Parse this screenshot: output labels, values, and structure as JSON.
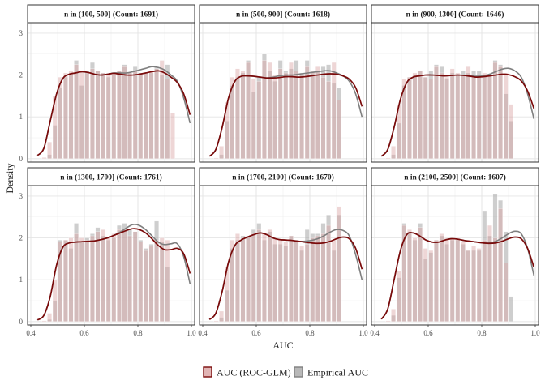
{
  "chart_data": {
    "type": "histogram-density-facets",
    "xlabel": "AUC",
    "ylabel": "Density",
    "xlim": [
      0.4,
      1.0
    ],
    "ylim": [
      0,
      3.2
    ],
    "xticks": [
      0.4,
      0.6,
      0.8,
      1.0
    ],
    "xtick_labels": [
      "0.4",
      "0.6",
      "0.8",
      "1.0"
    ],
    "yticks": [
      0,
      1,
      2,
      3
    ],
    "ytick_labels": [
      "0",
      "1",
      "2",
      "3"
    ],
    "grid": true,
    "legend_position": "bottom",
    "bin_width": 0.02,
    "bin_start": 0.42,
    "series": [
      {
        "name": "AUC (ROC-GLM)",
        "fill": "#d9a3a3",
        "line": "#7a0a0a"
      },
      {
        "name": "Empirical AUC",
        "fill": "#a6a6a6",
        "line": "#7f7f7f"
      }
    ],
    "panels": [
      {
        "strip": "n in (100, 500] (Count: 1691)",
        "rocglm_hist": [
          0.0,
          0.03,
          0.4,
          1.5,
          1.95,
          2.05,
          2.1,
          2.25,
          2.1,
          2.05,
          2.15,
          2.1,
          2.05,
          2.0,
          2.0,
          2.1,
          2.2,
          2.05,
          2.1,
          2.0,
          2.05,
          2.1,
          2.15,
          2.35,
          1.9,
          1.1,
          0.0,
          0.0,
          0.0,
          0.0
        ],
        "empirical_hist": [
          0.0,
          0.0,
          0.1,
          0.8,
          1.7,
          1.95,
          2.05,
          2.35,
          1.75,
          2.1,
          2.3,
          2.1,
          2.05,
          1.95,
          2.0,
          2.1,
          2.25,
          2.05,
          2.2,
          2.05,
          2.05,
          2.05,
          2.2,
          2.0,
          2.25,
          0.0,
          0.0,
          0.0,
          0.0,
          0.0
        ],
        "rocglm_density": [
          0.08,
          0.25,
          0.9,
          1.55,
          1.92,
          2.02,
          2.05,
          2.08,
          2.06,
          2.02,
          2.0,
          2.02,
          2.04,
          2.02,
          2.0,
          2.0,
          2.02,
          2.05,
          2.08,
          2.1,
          2.05,
          1.95,
          1.82,
          1.55,
          1.05
        ],
        "empirical_density": [
          0.08,
          0.25,
          0.9,
          1.55,
          1.92,
          2.02,
          2.05,
          2.08,
          2.06,
          2.02,
          2.0,
          2.02,
          2.05,
          2.05,
          2.05,
          2.08,
          2.12,
          2.16,
          2.2,
          2.18,
          2.12,
          2.0,
          1.85,
          1.45,
          0.85
        ]
      },
      {
        "strip": "n in (500, 900] (Count: 1618)",
        "rocglm_hist": [
          0.0,
          0.02,
          0.3,
          1.35,
          1.95,
          2.15,
          2.1,
          2.3,
          1.9,
          1.85,
          2.35,
          2.3,
          2.0,
          2.15,
          2.05,
          2.3,
          2.1,
          2.0,
          2.2,
          2.1,
          2.2,
          1.95,
          1.85,
          2.3,
          1.4,
          0.0,
          0.0,
          0.0,
          0.0,
          0.0
        ],
        "empirical_hist": [
          0.0,
          0.0,
          0.1,
          0.9,
          1.75,
          1.95,
          2.05,
          2.35,
          1.6,
          1.95,
          2.5,
          2.1,
          1.85,
          2.35,
          2.1,
          2.15,
          2.35,
          2.05,
          2.35,
          2.05,
          2.1,
          2.2,
          2.25,
          1.8,
          1.7,
          0.0,
          0.0,
          0.0,
          0.0,
          0.0
        ],
        "rocglm_density": [
          0.06,
          0.22,
          0.75,
          1.45,
          1.85,
          1.97,
          1.98,
          1.97,
          1.95,
          1.93,
          1.93,
          1.94,
          1.96,
          1.96,
          1.95,
          1.96,
          1.98,
          2.0,
          2.02,
          2.03,
          2.02,
          1.98,
          1.9,
          1.7,
          1.25
        ],
        "empirical_density": [
          0.06,
          0.22,
          0.75,
          1.45,
          1.85,
          1.97,
          1.98,
          1.97,
          1.95,
          1.93,
          1.95,
          1.98,
          2.0,
          2.0,
          2.02,
          2.04,
          2.06,
          2.08,
          2.1,
          2.1,
          2.05,
          1.98,
          1.85,
          1.55,
          1.0
        ]
      },
      {
        "strip": "n in (900, 1300] (Count: 1646)",
        "rocglm_hist": [
          0.0,
          0.02,
          0.3,
          1.3,
          1.9,
          1.95,
          2.05,
          2.1,
          1.95,
          1.9,
          2.2,
          2.05,
          1.95,
          2.15,
          2.05,
          2.0,
          2.2,
          1.95,
          2.0,
          2.05,
          2.0,
          2.3,
          2.2,
          2.05,
          1.3,
          0.0,
          0.0,
          0.0,
          0.0,
          0.0
        ],
        "empirical_hist": [
          0.0,
          0.0,
          0.1,
          0.85,
          1.75,
          1.95,
          2.0,
          2.1,
          1.95,
          2.1,
          2.25,
          2.2,
          1.9,
          2.05,
          2.0,
          2.1,
          2.05,
          2.1,
          2.1,
          2.0,
          2.0,
          2.35,
          2.25,
          1.55,
          0.9,
          0.0,
          0.0,
          0.0,
          0.0,
          0.0
        ],
        "rocglm_density": [
          0.06,
          0.22,
          0.75,
          1.42,
          1.82,
          1.95,
          1.98,
          2.0,
          2.0,
          1.99,
          1.98,
          1.99,
          2.0,
          1.99,
          1.97,
          1.95,
          1.96,
          1.98,
          2.0,
          2.02,
          2.01,
          1.96,
          1.86,
          1.62,
          1.2
        ],
        "empirical_density": [
          0.06,
          0.22,
          0.75,
          1.42,
          1.82,
          1.95,
          1.98,
          2.0,
          2.0,
          1.99,
          1.98,
          1.99,
          2.0,
          1.99,
          1.98,
          1.97,
          1.98,
          2.02,
          2.08,
          2.14,
          2.16,
          2.1,
          1.95,
          1.55,
          0.95
        ]
      },
      {
        "strip": "n in (1300, 1700] (Count: 1761)",
        "rocglm_hist": [
          0.0,
          0.02,
          0.2,
          1.0,
          1.9,
          1.95,
          2.0,
          2.1,
          2.0,
          1.95,
          2.05,
          2.15,
          2.2,
          2.0,
          2.1,
          2.2,
          2.2,
          2.05,
          2.15,
          1.9,
          1.7,
          1.8,
          1.95,
          2.0,
          1.95,
          0.0,
          0.0,
          0.0,
          0.0,
          0.0
        ],
        "empirical_hist": [
          0.0,
          0.0,
          0.05,
          0.5,
          1.95,
          1.95,
          1.75,
          2.35,
          1.9,
          2.0,
          2.1,
          2.25,
          2.05,
          1.95,
          2.0,
          2.3,
          2.35,
          2.2,
          2.15,
          1.95,
          1.75,
          1.85,
          2.4,
          1.9,
          1.3,
          0.0,
          0.0,
          0.0,
          0.0,
          0.0
        ],
        "rocglm_density": [
          0.04,
          0.15,
          0.6,
          1.35,
          1.78,
          1.88,
          1.9,
          1.91,
          1.92,
          1.93,
          1.96,
          2.0,
          2.06,
          2.12,
          2.18,
          2.22,
          2.2,
          2.12,
          1.98,
          1.82,
          1.72,
          1.72,
          1.75,
          1.62,
          1.15
        ],
        "empirical_density": [
          0.04,
          0.15,
          0.6,
          1.35,
          1.78,
          1.88,
          1.9,
          1.91,
          1.92,
          1.93,
          1.96,
          2.0,
          2.06,
          2.14,
          2.24,
          2.32,
          2.3,
          2.2,
          2.05,
          1.9,
          1.84,
          1.86,
          1.86,
          1.55,
          0.9
        ]
      },
      {
        "strip": "n in (1700, 2100] (Count: 1670)",
        "rocglm_hist": [
          0.0,
          0.02,
          0.25,
          1.3,
          1.95,
          2.1,
          2.0,
          2.05,
          2.1,
          2.2,
          2.1,
          2.2,
          2.0,
          1.95,
          1.9,
          2.05,
          1.95,
          1.8,
          1.85,
          2.0,
          2.05,
          2.1,
          2.3,
          1.95,
          2.75,
          0.0,
          0.0,
          0.0,
          0.0,
          0.0
        ],
        "empirical_hist": [
          0.0,
          0.0,
          0.1,
          0.75,
          1.75,
          1.95,
          2.05,
          2.05,
          2.2,
          2.35,
          1.95,
          2.15,
          1.85,
          1.85,
          1.8,
          2.05,
          1.9,
          1.7,
          2.2,
          2.1,
          2.1,
          2.35,
          2.55,
          1.7,
          2.55,
          0.0,
          0.0,
          0.0,
          0.0,
          0.0
        ],
        "rocglm_density": [
          0.05,
          0.2,
          0.72,
          1.42,
          1.82,
          1.95,
          2.02,
          2.08,
          2.12,
          2.08,
          2.0,
          1.96,
          1.95,
          1.94,
          1.92,
          1.9,
          1.88,
          1.87,
          1.88,
          1.92,
          1.98,
          2.02,
          1.98,
          1.75,
          1.25
        ],
        "empirical_density": [
          0.05,
          0.2,
          0.72,
          1.42,
          1.82,
          1.95,
          2.02,
          2.08,
          2.12,
          2.08,
          2.0,
          1.96,
          1.95,
          1.94,
          1.92,
          1.92,
          1.94,
          1.98,
          2.05,
          2.14,
          2.2,
          2.18,
          2.05,
          1.6,
          1.0
        ]
      },
      {
        "strip": "n in (2100, 2500] (Count: 1607)",
        "rocglm_hist": [
          0.0,
          0.02,
          0.3,
          1.2,
          2.3,
          2.2,
          2.0,
          2.25,
          1.75,
          1.7,
          1.95,
          2.1,
          2.0,
          2.0,
          2.0,
          1.9,
          1.7,
          1.8,
          1.75,
          1.95,
          2.3,
          2.0,
          2.7,
          1.4,
          0.0,
          0.0,
          0.0,
          0.0,
          0.0,
          0.0
        ],
        "empirical_hist": [
          0.0,
          0.0,
          0.15,
          1.05,
          2.35,
          2.15,
          1.95,
          2.35,
          1.5,
          1.65,
          1.95,
          2.05,
          1.85,
          1.95,
          1.95,
          1.85,
          1.7,
          1.7,
          1.7,
          2.65,
          2.05,
          3.05,
          2.9,
          2.15,
          0.6,
          0.0,
          0.0,
          0.0,
          0.0,
          0.0
        ],
        "rocglm_density": [
          0.06,
          0.3,
          1.0,
          1.7,
          2.08,
          2.12,
          2.05,
          1.95,
          1.9,
          1.9,
          1.95,
          1.98,
          1.97,
          1.94,
          1.92,
          1.9,
          1.88,
          1.87,
          1.88,
          1.92,
          1.98,
          2.02,
          1.98,
          1.75,
          1.3
        ],
        "empirical_density": [
          0.06,
          0.3,
          1.0,
          1.7,
          2.08,
          2.12,
          2.05,
          1.95,
          1.9,
          1.9,
          1.95,
          1.98,
          1.97,
          1.94,
          1.92,
          1.9,
          1.88,
          1.88,
          1.92,
          2.0,
          2.1,
          2.16,
          2.1,
          1.75,
          1.1
        ]
      }
    ]
  }
}
